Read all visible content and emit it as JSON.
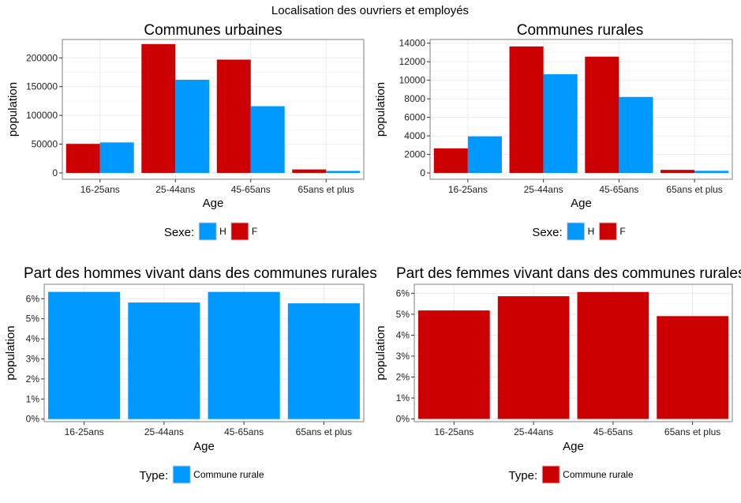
{
  "page_title": "Localisation des ouvriers et employés",
  "colors": {
    "F": "#cc0000",
    "H": "#0099ff"
  },
  "chart_data": [
    {
      "type": "bar",
      "title": "Communes urbaines",
      "xlabel": "Age",
      "ylabel": "population",
      "categories": [
        "16-25ans",
        "25-44ans",
        "45-65ans",
        "65ans et plus"
      ],
      "series": [
        {
          "name": "F",
          "color": "#cc0000",
          "values": [
            50500,
            224000,
            197000,
            6000
          ]
        },
        {
          "name": "H",
          "color": "#0099ff",
          "values": [
            53000,
            162000,
            116000,
            3500
          ]
        }
      ],
      "ylim": [
        -11000,
        232000
      ],
      "yticks": [
        0,
        50000,
        100000,
        150000,
        200000
      ],
      "ytick_labels": [
        "0",
        "50000",
        "100000",
        "150000",
        "200000"
      ],
      "grid": true,
      "legend": {
        "title": "Sexe:",
        "position": "bottom",
        "entries": [
          {
            "label": "H",
            "color": "#0099ff"
          },
          {
            "label": "F",
            "color": "#cc0000"
          }
        ]
      }
    },
    {
      "type": "bar",
      "title": "Communes rurales",
      "xlabel": "Age",
      "ylabel": "population",
      "categories": [
        "16-25ans",
        "25-44ans",
        "45-65ans",
        "65ans et plus"
      ],
      "series": [
        {
          "name": "F",
          "color": "#cc0000",
          "values": [
            2650,
            13650,
            12550,
            330
          ]
        },
        {
          "name": "H",
          "color": "#0099ff",
          "values": [
            3950,
            10650,
            8200,
            230
          ]
        }
      ],
      "ylim": [
        -680,
        14400
      ],
      "yticks": [
        0,
        2000,
        4000,
        6000,
        8000,
        10000,
        12000,
        14000
      ],
      "ytick_labels": [
        "0",
        "2000",
        "4000",
        "6000",
        "8000",
        "10000",
        "12000",
        "14000"
      ],
      "grid": true,
      "legend": {
        "title": "Sexe:",
        "position": "bottom",
        "entries": [
          {
            "label": "H",
            "color": "#0099ff"
          },
          {
            "label": "F",
            "color": "#cc0000"
          }
        ]
      }
    },
    {
      "type": "bar",
      "title": "Part des hommes vivant dans des communes rurales",
      "xlabel": "Age",
      "ylabel": "population",
      "categories": [
        "16-25ans",
        "25-44ans",
        "45-65ans",
        "65ans et plus"
      ],
      "series": [
        {
          "name": "Commune rurale",
          "color": "#0099ff",
          "values": [
            0.0634,
            0.0581,
            0.0634,
            0.0577
          ]
        }
      ],
      "ylim": [
        -0.0013,
        0.0672
      ],
      "yticks": [
        0,
        0.01,
        0.02,
        0.03,
        0.04,
        0.05,
        0.06
      ],
      "ytick_labels": [
        "0%",
        "1%",
        "2%",
        "3%",
        "4%",
        "5%",
        "6%"
      ],
      "grid": true,
      "legend": {
        "title": "Type:",
        "position": "bottom",
        "entries": [
          {
            "label": "Commune rurale",
            "color": "#0099ff"
          }
        ]
      }
    },
    {
      "type": "bar",
      "title": "Part des femmes vivant dans des communes rurales",
      "xlabel": "Age",
      "ylabel": "population",
      "categories": [
        "16-25ans",
        "25-44ans",
        "45-65ans",
        "65ans et plus"
      ],
      "series": [
        {
          "name": "Commune rurale",
          "color": "#cc0000",
          "values": [
            0.0518,
            0.0586,
            0.0606,
            0.0491
          ]
        }
      ],
      "ylim": [
        -0.0013,
        0.0643
      ],
      "yticks": [
        0,
        0.01,
        0.02,
        0.03,
        0.04,
        0.05,
        0.06
      ],
      "ytick_labels": [
        "0%",
        "1%",
        "2%",
        "3%",
        "4%",
        "5%",
        "6%"
      ],
      "grid": true,
      "legend": {
        "title": "Type:",
        "position": "bottom",
        "entries": [
          {
            "label": "Commune rurale",
            "color": "#cc0000"
          }
        ]
      }
    }
  ]
}
